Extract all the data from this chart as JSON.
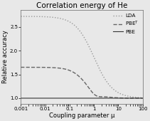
{
  "title": "Correlation energy of He",
  "xlabel": "Coupling parameter μ",
  "ylabel": "Relative accuracy",
  "ylim": [
    0.88,
    2.85
  ],
  "yticks": [
    1.0,
    1.5,
    2.0,
    2.5
  ],
  "legend": [
    "LDA",
    "PBE$^T$",
    "PBE"
  ],
  "line_colors": [
    "#999999",
    "#666666",
    "#333333"
  ],
  "background_color": "#e8e8e8",
  "title_fontsize": 7.5,
  "label_fontsize": 6,
  "tick_fontsize": 5
}
